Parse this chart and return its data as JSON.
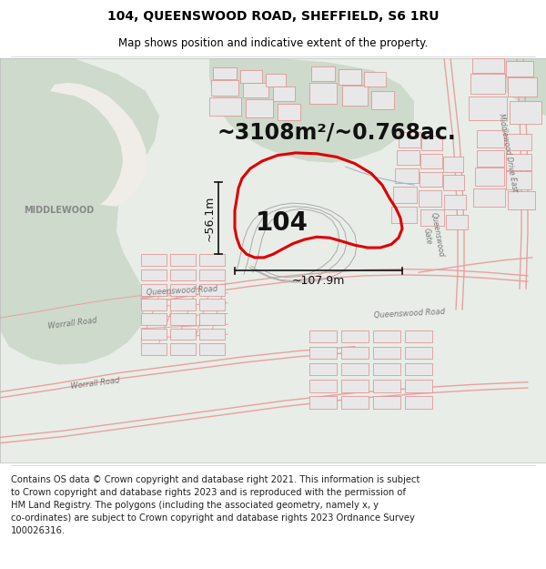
{
  "title_line1": "104, QUEENSWOOD ROAD, SHEFFIELD, S6 1RU",
  "title_line2": "Map shows position and indicative extent of the property.",
  "area_text": "~3108m²/~0.768ac.",
  "property_number": "104",
  "dim_vertical": "~56.1m",
  "dim_horizontal": "~107.9m",
  "label_middlewood": "MIDDLEWOOD",
  "label_worrall": "Worrall Road",
  "label_queenswood_road": "Queenswood Road",
  "label_queenswood_gate": "Queenswood Gate",
  "label_middlewood_drive": "Middlewood Drive East",
  "footer_text": "Contains OS data © Crown copyright and database right 2021. This information is subject to Crown copyright and database rights 2023 and is reproduced with the permission of HM Land Registry. The polygons (including the associated geometry, namely x, y co-ordinates) are subject to Crown copyright and database rights 2023 Ordnance Survey 100026316.",
  "bg_color": "#ffffff",
  "map_bg": "#e8ede8",
  "green_area_color": "#cddacc",
  "road_outline_color": "#e8a0a0",
  "road_fill_color": "#f5f0ee",
  "property_outline_color": "#dd0000",
  "building_fill": "#e8e8e8",
  "building_outline": "#e08888",
  "dim_line_color": "#111111",
  "path_color": "#aaccaa",
  "water_color": "#aaccdd",
  "title_fontsize": 10,
  "subtitle_fontsize": 8.5,
  "area_fontsize": 17,
  "number_fontsize": 20,
  "dim_fontsize": 9,
  "label_fontsize": 7,
  "road_label_fontsize": 6,
  "footer_fontsize": 7.2
}
